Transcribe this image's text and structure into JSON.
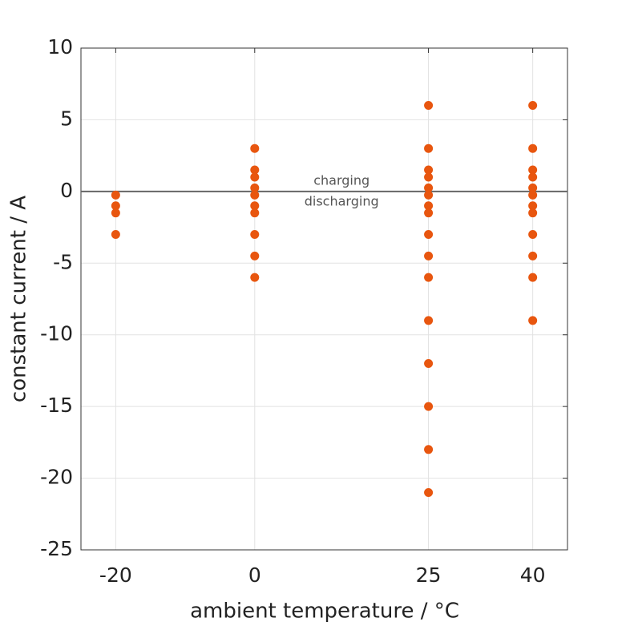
{
  "chart_data": {
    "type": "scatter",
    "xlabel": "ambient temperature / °C",
    "ylabel": "constant current / A",
    "x": [
      -20,
      -20,
      -20,
      -20,
      0,
      0,
      0,
      0,
      0,
      0,
      0,
      0,
      0,
      0,
      25,
      25,
      25,
      25,
      25,
      25,
      25,
      25,
      25,
      25,
      25,
      25,
      25,
      25,
      25,
      25,
      40,
      40,
      40,
      40,
      40,
      40,
      40,
      40,
      40,
      40,
      40,
      40
    ],
    "values": [
      -0.25,
      -1,
      -1.5,
      -3,
      3,
      1.5,
      1,
      0.25,
      -0.25,
      -1,
      -1.5,
      -3,
      -4.5,
      -6,
      6,
      3,
      1.5,
      1,
      0.25,
      -0.25,
      -1,
      -1.5,
      -3,
      -4.5,
      -6,
      -9,
      -12,
      -15,
      -18,
      -21,
      6,
      3,
      1.5,
      1,
      0.25,
      -0.25,
      -1,
      -1.5,
      -3,
      -4.5,
      -6,
      -9
    ],
    "color": "#e8560f",
    "xlim": [
      -25,
      45
    ],
    "xticks": [
      -20,
      0,
      25,
      40
    ],
    "ylim": [
      -25,
      10
    ],
    "yticks": [
      -25,
      -20,
      -15,
      -10,
      -5,
      0,
      5,
      10
    ],
    "grid": true,
    "zero_line": true,
    "annotations": [
      "charging",
      "discharging"
    ]
  }
}
